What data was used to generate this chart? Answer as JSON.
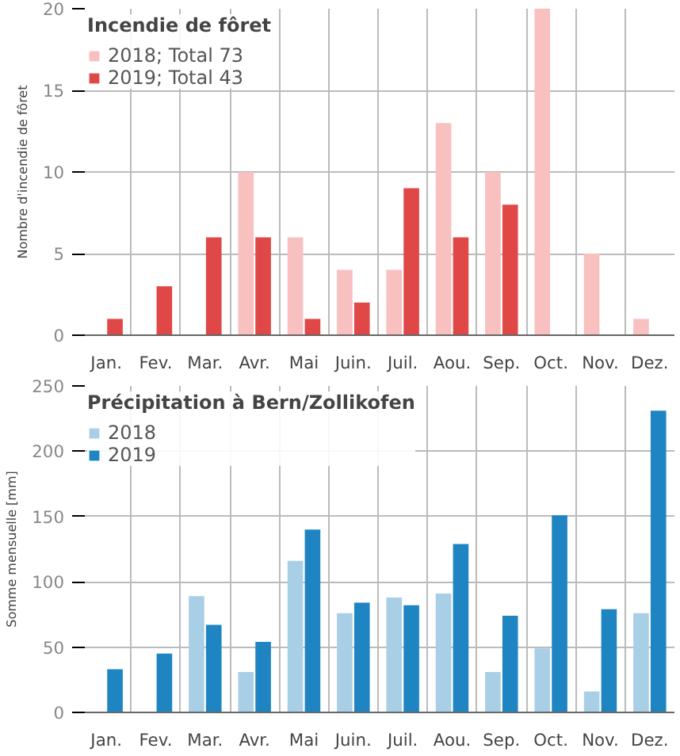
{
  "chart_data": [
    {
      "type": "bar",
      "ylabel": "Nombre d'incendie de fôret",
      "legend_title": "Incendie de fôret",
      "categories": [
        "Jan.",
        "Fev.",
        "Mar.",
        "Avr.",
        "Mai",
        "Juin.",
        "Juil.",
        "Aou.",
        "Sep.",
        "Oct.",
        "Nov.",
        "Dez."
      ],
      "series": [
        {
          "name": "2018; Total 73",
          "color": "#f9c0c0",
          "values": [
            null,
            null,
            0,
            10,
            6,
            4,
            4,
            13,
            10,
            20,
            5,
            1
          ]
        },
        {
          "name": "2019; Total 43",
          "color": "#e04848",
          "values": [
            1,
            3,
            6,
            6,
            1,
            2,
            9,
            6,
            8,
            null,
            null,
            null
          ]
        }
      ],
      "ylim": [
        0,
        20
      ],
      "yticks": [
        0,
        5,
        10,
        15,
        20
      ],
      "grid": true,
      "legend": "top left"
    },
    {
      "type": "bar",
      "ylabel": "Somme mensuelle [mm]",
      "legend_title": "Précipitation à Bern/Zollikofen",
      "categories": [
        "Jan.",
        "Fev.",
        "Mar.",
        "Avr.",
        "Mai",
        "Juin.",
        "Juil.",
        "Aou.",
        "Sep.",
        "Oct.",
        "Nov.",
        "Dez."
      ],
      "series": [
        {
          "name": "2018",
          "color": "#a9cfe6",
          "values": [
            null,
            null,
            89,
            31,
            116,
            76,
            88,
            91,
            31,
            49,
            16,
            76
          ]
        },
        {
          "name": "2019",
          "color": "#1f85c2",
          "values": [
            33,
            45,
            67,
            54,
            140,
            84,
            82,
            129,
            74,
            151,
            79,
            231
          ]
        }
      ],
      "ylim": [
        0,
        250
      ],
      "yticks": [
        0,
        50,
        100,
        150,
        200,
        250
      ],
      "grid": true,
      "legend": "top left"
    }
  ]
}
